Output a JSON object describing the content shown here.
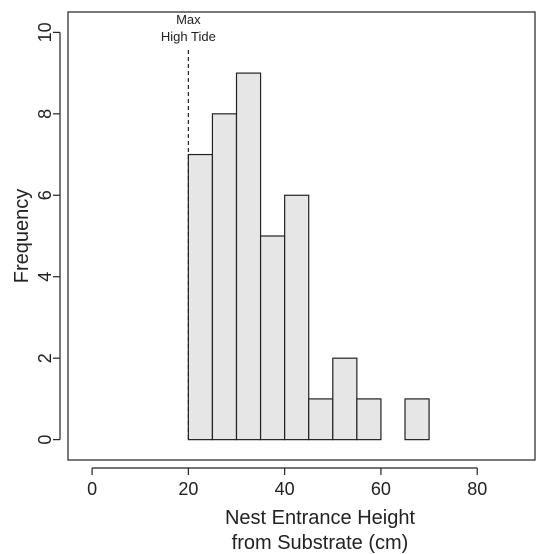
{
  "chart_data": {
    "type": "bar",
    "subtype": "histogram",
    "bin_edges": [
      20,
      25,
      30,
      35,
      40,
      45,
      50,
      55,
      60,
      65,
      70
    ],
    "frequencies": [
      7,
      8,
      9,
      5,
      6,
      1,
      2,
      1,
      0,
      1
    ],
    "xlabel_line1": "Nest Entrance Height",
    "xlabel_line2": "from Substrate (cm)",
    "ylabel": "Frequency",
    "xlim": [
      -5,
      92
    ],
    "ylim": [
      -0.5,
      10.5
    ],
    "xticks": [
      0,
      20,
      40,
      60,
      80
    ],
    "yticks": [
      0,
      2,
      4,
      6,
      8,
      10
    ],
    "grid": false,
    "bar_fill": "#e6e6e6",
    "bar_stroke": "#222222",
    "reference_line": {
      "x": 20,
      "style": "dashed",
      "label_line1": "Max",
      "label_line2": "High Tide"
    }
  }
}
